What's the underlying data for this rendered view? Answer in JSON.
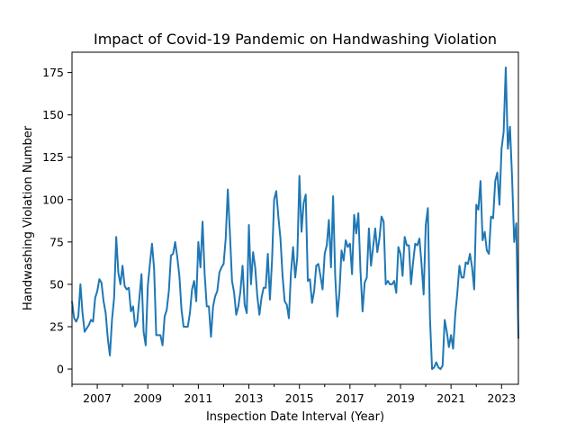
{
  "chart_data": {
    "type": "line",
    "title": "Impact of Covid-19 Pandemic on Handwashing Violation",
    "xlabel": "Inspection Date Interval (Year)",
    "ylabel": "Handwashing Violation Number",
    "xlim": [
      "2006-01",
      "2023-09"
    ],
    "ylim": [
      -9,
      187
    ],
    "x_ticks": [
      "2007",
      "2009",
      "2011",
      "2013",
      "2015",
      "2017",
      "2019",
      "2021",
      "2023"
    ],
    "y_ticks": [
      "0",
      "25",
      "50",
      "75",
      "100",
      "125",
      "150",
      "175"
    ],
    "grid": false,
    "legend": "none",
    "colors": {
      "line": "#1f77b4"
    },
    "series": [
      {
        "x": [
          "2006-01",
          "2006-02",
          "2006-03",
          "2006-04",
          "2006-05",
          "2006-06",
          "2006-07",
          "2006-08",
          "2006-09",
          "2006-10",
          "2006-11",
          "2006-12",
          "2007-01",
          "2007-02",
          "2007-03",
          "2007-04",
          "2007-05",
          "2007-06",
          "2007-07",
          "2007-08",
          "2007-09",
          "2007-10",
          "2007-11",
          "2007-12",
          "2008-01",
          "2008-02",
          "2008-03",
          "2008-04",
          "2008-05",
          "2008-06",
          "2008-07",
          "2008-08",
          "2008-09",
          "2008-10",
          "2008-11",
          "2008-12",
          "2009-01",
          "2009-02",
          "2009-03",
          "2009-04",
          "2009-05",
          "2009-06",
          "2009-07",
          "2009-08",
          "2009-09",
          "2009-10",
          "2009-11",
          "2009-12",
          "2010-01",
          "2010-02",
          "2010-03",
          "2010-04",
          "2010-05",
          "2010-06",
          "2010-07",
          "2010-08",
          "2010-09",
          "2010-10",
          "2010-11",
          "2010-12",
          "2011-01",
          "2011-02",
          "2011-03",
          "2011-04",
          "2011-05",
          "2011-06",
          "2011-07",
          "2011-08",
          "2011-09",
          "2011-10",
          "2011-11",
          "2011-12",
          "2012-01",
          "2012-02",
          "2012-03",
          "2012-04",
          "2012-05",
          "2012-06",
          "2012-07",
          "2012-08",
          "2012-09",
          "2012-10",
          "2012-11",
          "2012-12",
          "2013-01",
          "2013-02",
          "2013-03",
          "2013-04",
          "2013-05",
          "2013-06",
          "2013-07",
          "2013-08",
          "2013-09",
          "2013-10",
          "2013-11",
          "2013-12",
          "2014-01",
          "2014-02",
          "2014-03",
          "2014-04",
          "2014-05",
          "2014-06",
          "2014-07",
          "2014-08",
          "2014-09",
          "2014-10",
          "2014-11",
          "2014-12",
          "2015-01",
          "2015-02",
          "2015-03",
          "2015-04",
          "2015-05",
          "2015-06",
          "2015-07",
          "2015-08",
          "2015-09",
          "2015-10",
          "2015-11",
          "2015-12",
          "2016-01",
          "2016-02",
          "2016-03",
          "2016-04",
          "2016-05",
          "2016-06",
          "2016-07",
          "2016-08",
          "2016-09",
          "2016-10",
          "2016-11",
          "2016-12",
          "2017-01",
          "2017-02",
          "2017-03",
          "2017-04",
          "2017-05",
          "2017-06",
          "2017-07",
          "2017-08",
          "2017-09",
          "2017-10",
          "2017-11",
          "2017-12",
          "2018-01",
          "2018-02",
          "2018-03",
          "2018-04",
          "2018-05",
          "2018-06",
          "2018-07",
          "2018-08",
          "2018-09",
          "2018-10",
          "2018-11",
          "2018-12",
          "2019-01",
          "2019-02",
          "2019-03",
          "2019-04",
          "2019-05",
          "2019-06",
          "2019-07",
          "2019-08",
          "2019-09",
          "2019-10",
          "2019-11",
          "2019-12",
          "2020-01",
          "2020-02",
          "2020-03",
          "2020-04",
          "2020-05",
          "2020-06",
          "2020-07",
          "2020-08",
          "2020-09",
          "2020-10",
          "2020-11",
          "2020-12",
          "2021-01",
          "2021-02",
          "2021-03",
          "2021-04",
          "2021-05",
          "2021-06",
          "2021-07",
          "2021-08",
          "2021-09",
          "2021-10",
          "2021-11",
          "2021-12",
          "2022-01",
          "2022-02",
          "2022-03",
          "2022-04",
          "2022-05",
          "2022-06",
          "2022-07",
          "2022-08",
          "2022-09",
          "2022-10",
          "2022-11",
          "2022-12",
          "2023-01",
          "2023-02",
          "2023-03",
          "2023-04",
          "2023-05",
          "2023-06",
          "2023-07",
          "2023-08",
          "2023-09"
        ],
        "values": [
          40,
          30,
          28,
          31,
          50,
          33,
          22,
          24,
          26,
          29,
          28,
          42,
          46,
          53,
          51,
          40,
          33,
          18,
          8,
          29,
          42,
          78,
          57,
          50,
          61,
          49,
          47,
          48,
          34,
          37,
          25,
          28,
          42,
          56,
          22,
          14,
          49,
          62,
          74,
          59,
          20,
          20,
          20,
          14,
          31,
          35,
          46,
          67,
          68,
          75,
          66,
          55,
          35,
          25,
          25,
          25,
          33,
          47,
          52,
          40,
          75,
          60,
          87,
          56,
          37,
          37,
          19,
          37,
          43,
          46,
          57,
          60,
          62,
          77,
          106,
          80,
          52,
          45,
          32,
          37,
          46,
          61,
          38,
          33,
          85,
          50,
          69,
          60,
          43,
          32,
          42,
          48,
          48,
          68,
          41,
          64,
          100,
          105,
          90,
          77,
          55,
          40,
          38,
          30,
          57,
          72,
          54,
          66,
          114,
          81,
          98,
          103,
          52,
          53,
          39,
          46,
          61,
          62,
          55,
          47,
          68,
          73,
          88,
          60,
          102,
          55,
          31,
          45,
          70,
          64,
          76,
          72,
          74,
          56,
          91,
          80,
          92,
          58,
          34,
          51,
          54,
          83,
          61,
          72,
          83,
          69,
          77,
          90,
          87,
          50,
          52,
          50,
          50,
          52,
          45,
          72,
          68,
          55,
          78,
          73,
          73,
          50,
          63,
          74,
          73,
          77,
          62,
          44,
          85,
          95,
          30,
          0,
          1,
          4,
          1,
          0,
          2,
          29,
          22,
          13,
          20,
          12,
          32,
          45,
          61,
          54,
          54,
          63,
          62,
          68,
          60,
          47,
          97,
          94,
          111,
          76,
          81,
          70,
          68,
          90,
          89,
          111,
          116,
          97,
          130,
          140,
          178,
          130,
          143,
          113,
          75,
          86,
          18
        ]
      }
    ]
  }
}
